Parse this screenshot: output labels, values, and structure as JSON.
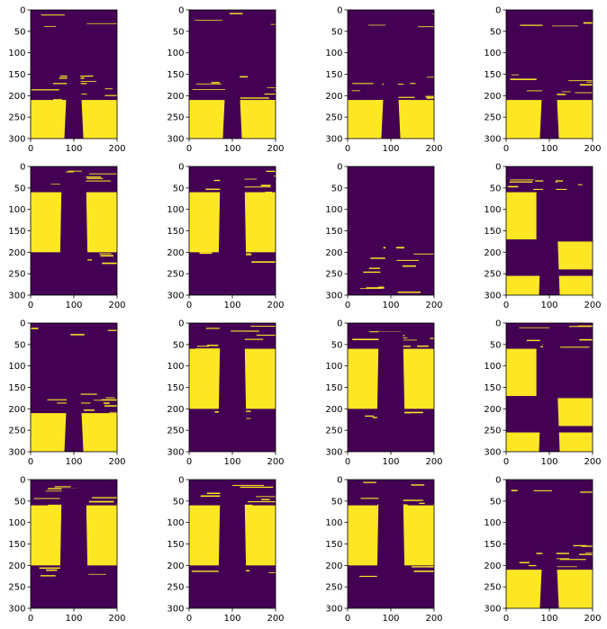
{
  "chart_data": {
    "type": "heatmap",
    "layout": {
      "rows": 4,
      "cols": 4
    },
    "colors": {
      "background": "#440154",
      "foreground": "#fde725"
    },
    "x_axis": {
      "range": [
        0,
        200
      ],
      "ticks": [
        "0",
        "100",
        "200"
      ]
    },
    "y_axis": {
      "range": [
        0,
        300
      ],
      "inverted": true,
      "ticks": [
        "0",
        "50",
        "100",
        "150",
        "200",
        "250",
        "300"
      ]
    },
    "panels": [
      {
        "row": 1,
        "col": 1,
        "pattern": "ground-mask"
      },
      {
        "row": 1,
        "col": 2,
        "pattern": "ground-mask"
      },
      {
        "row": 1,
        "col": 3,
        "pattern": "ground-mask"
      },
      {
        "row": 1,
        "col": 4,
        "pattern": "ground-mask"
      },
      {
        "row": 2,
        "col": 1,
        "pattern": "wall-mask"
      },
      {
        "row": 2,
        "col": 2,
        "pattern": "wall-mask"
      },
      {
        "row": 2,
        "col": 3,
        "pattern": "sparse-mask"
      },
      {
        "row": 2,
        "col": 4,
        "pattern": "mixed-mask"
      },
      {
        "row": 3,
        "col": 1,
        "pattern": "ground-mask"
      },
      {
        "row": 3,
        "col": 2,
        "pattern": "wall-mask"
      },
      {
        "row": 3,
        "col": 3,
        "pattern": "wall-mask"
      },
      {
        "row": 3,
        "col": 4,
        "pattern": "mixed-mask"
      },
      {
        "row": 4,
        "col": 1,
        "pattern": "wall-mask"
      },
      {
        "row": 4,
        "col": 2,
        "pattern": "wall-mask"
      },
      {
        "row": 4,
        "col": 3,
        "pattern": "wall-mask"
      },
      {
        "row": 4,
        "col": 4,
        "pattern": "ground-mask"
      }
    ]
  }
}
